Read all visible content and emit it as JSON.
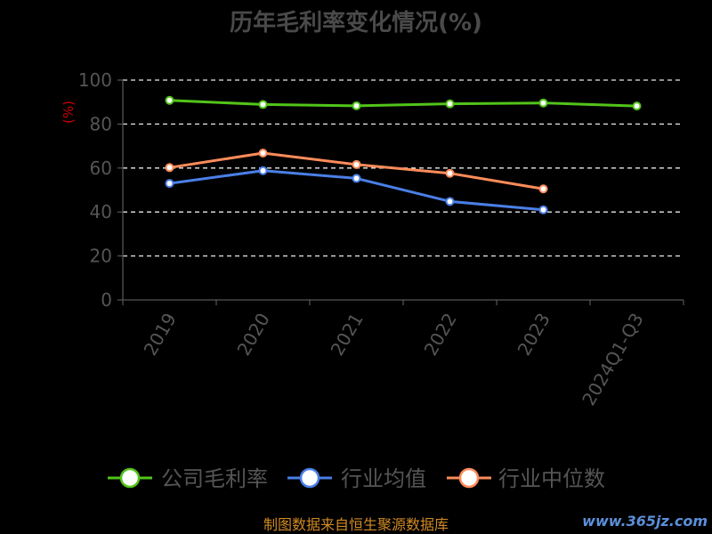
{
  "chart_data": {
    "type": "line",
    "title": "历年毛利率变化情况(%)",
    "ylabel": "(%)",
    "categories": [
      "2019",
      "2020",
      "2021",
      "2022",
      "2023",
      "2024Q1-Q3"
    ],
    "ylim": [
      0,
      100
    ],
    "yticks": [
      0,
      20,
      40,
      60,
      80,
      100
    ],
    "grid": true,
    "legend_position": "bottom",
    "series": [
      {
        "name": "公司毛利率",
        "color": "#52c41a",
        "values": [
          90.8,
          88.9,
          88.3,
          89.2,
          89.6,
          88.2
        ]
      },
      {
        "name": "行业均值",
        "color": "#4a7fe6",
        "values": [
          53.0,
          58.8,
          55.3,
          44.8,
          41.0,
          null
        ]
      },
      {
        "name": "行业中位数",
        "color": "#ff8c5a",
        "values": [
          60.2,
          66.8,
          61.6,
          57.6,
          50.5,
          null
        ]
      }
    ]
  },
  "footer": {
    "source": "制图数据来自恒生聚源数据库",
    "watermark": "www.365jz.com"
  }
}
